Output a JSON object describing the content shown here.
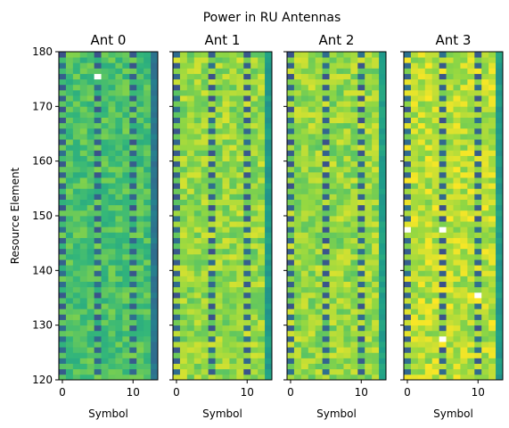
{
  "chart_data": {
    "type": "heatmap",
    "title": "Power in RU Antennas",
    "ylabel": "Resource Element",
    "xlabel": "Symbol",
    "xlim": [
      -0.5,
      13.5
    ],
    "ylim": [
      120,
      180
    ],
    "xticks": [
      "0",
      "10"
    ],
    "yticks": [
      "120",
      "130",
      "140",
      "150",
      "160",
      "170",
      "180"
    ],
    "pilot_symbols": [
      0,
      5,
      10
    ],
    "colormap": "viridis",
    "panels": [
      {
        "name": "Ant 0",
        "base_level": 0.78,
        "edge_level": 0.45,
        "bright_cells": [
          [
            5,
            175
          ]
        ]
      },
      {
        "name": "Ant 1",
        "base_level": 0.88,
        "edge_level": 0.62,
        "bright_cells": []
      },
      {
        "name": "Ant 2",
        "base_level": 0.88,
        "edge_level": 0.64,
        "bright_cells": []
      },
      {
        "name": "Ant 3",
        "base_level": 0.92,
        "edge_level": 0.62,
        "bright_cells": [
          [
            0,
            147
          ],
          [
            5,
            147
          ],
          [
            10,
            135
          ],
          [
            5,
            127
          ]
        ]
      }
    ]
  }
}
